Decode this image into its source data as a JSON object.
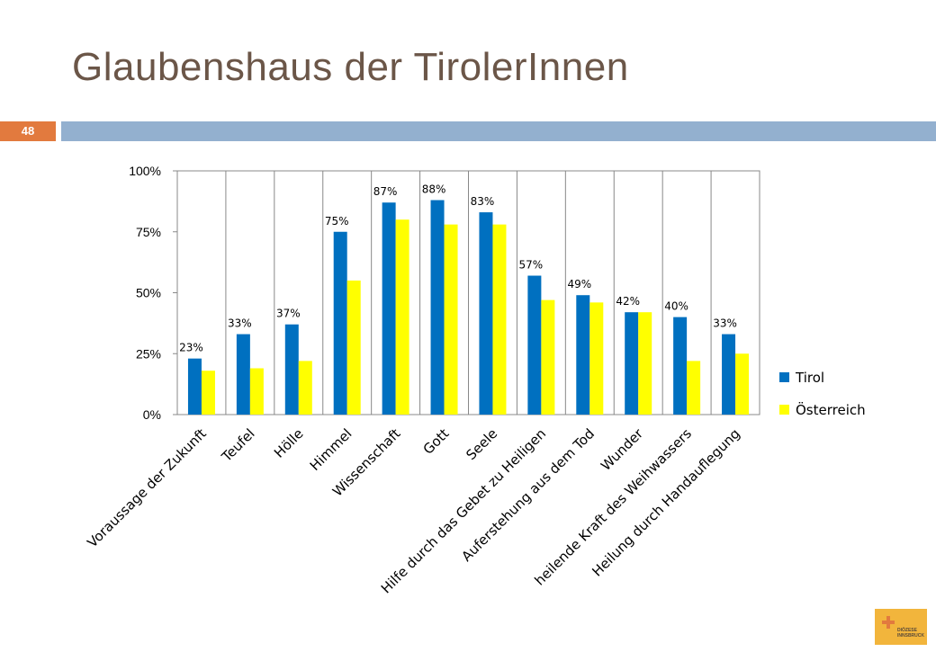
{
  "slide": {
    "title": "Glaubenshaus der TirolerInnen",
    "page_number": "48",
    "logo_text_1": "DIÖZESE",
    "logo_text_2": "INNSBRUCK"
  },
  "colors": {
    "tirol": "#0070c0",
    "oesterreich": "#ffff00",
    "title": "#6b5648",
    "rule": "#93b0cf",
    "badge": "#e27a3e",
    "logo": "#f2b53c"
  },
  "chart_data": {
    "type": "bar",
    "categories": [
      "Voraussage der Zukunft",
      "Teufel",
      "Hölle",
      "Himmel",
      "Wissenschaft",
      "Gott",
      "Seele",
      "Hilfe durch das Gebet zu Heiligen",
      "Auferstehung aus dem Tod",
      "Wunder",
      "heilende Kraft des Weihwassers",
      "Heilung durch Handauflegung"
    ],
    "series": [
      {
        "name": "Tirol",
        "values": [
          23,
          33,
          37,
          75,
          87,
          88,
          83,
          57,
          49,
          42,
          40,
          33
        ],
        "labels": [
          "23%",
          "33%",
          "37%",
          "75%",
          "87%",
          "88%",
          "83%",
          "57%",
          "49%",
          "42%",
          "40%",
          "33%"
        ]
      },
      {
        "name": "Österreich",
        "values": [
          18,
          19,
          22,
          55,
          80,
          78,
          78,
          47,
          46,
          42,
          22,
          25
        ]
      }
    ],
    "yticks": [
      "0%",
      "25%",
      "50%",
      "75%",
      "100%"
    ],
    "ylim": [
      0,
      100
    ],
    "grid": "vertical category separators",
    "legend": "right"
  }
}
